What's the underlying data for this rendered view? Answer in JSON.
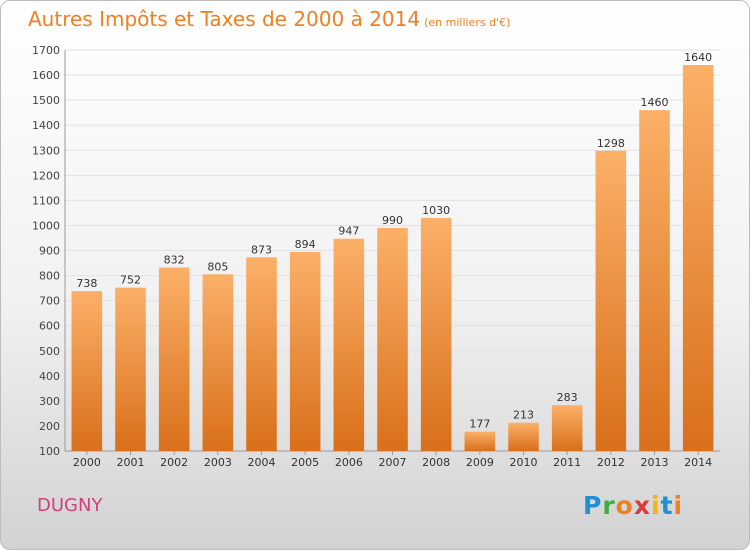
{
  "title": "Autres Impôts et Taxes de 2000 à 2014",
  "unit": "(en milliers d'€)",
  "town": "DUGNY",
  "logo": [
    "P",
    "r",
    "o",
    "x",
    "i",
    "t",
    "i"
  ],
  "colors": {
    "bar_light": "#fbb068",
    "bar_dark": "#d96f1a",
    "title": "#f07f22",
    "town": "#d23f7f"
  },
  "chart_data": {
    "type": "bar",
    "title": "Autres Impôts et Taxes de 2000 à 2014",
    "subtitle": "(en milliers d'€)",
    "categories": [
      "2000",
      "2001",
      "2002",
      "2003",
      "2004",
      "2005",
      "2006",
      "2007",
      "2008",
      "2009",
      "2010",
      "2011",
      "2012",
      "2013",
      "2014"
    ],
    "values": [
      738,
      752,
      832,
      805,
      873,
      894,
      947,
      990,
      1030,
      177,
      213,
      283,
      1298,
      1460,
      1640
    ],
    "data_labels": [
      "738",
      "752",
      "832",
      "805",
      "873",
      "894",
      "947",
      "990",
      "1030",
      "177",
      "213",
      "283",
      "1298",
      "1460",
      "1640"
    ],
    "ylim": [
      100,
      1700
    ],
    "yticks": [
      "100",
      "200",
      "300",
      "400",
      "500",
      "600",
      "700",
      "800",
      "900",
      "1000",
      "1100",
      "1200",
      "1300",
      "1400",
      "1500",
      "1600",
      "1700"
    ],
    "grid": true,
    "legend": "none"
  }
}
